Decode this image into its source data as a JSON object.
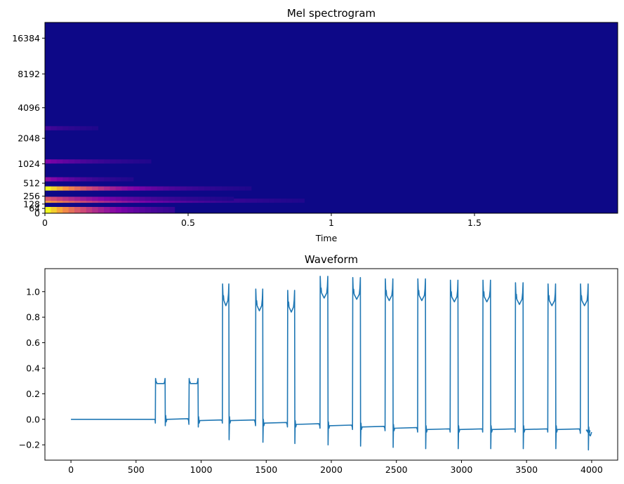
{
  "chart_data": [
    {
      "type": "heatmap",
      "title": "Mel spectrogram",
      "xlabel": "Time",
      "ylabel": "",
      "xlim": [
        0,
        2.0
      ],
      "x_ticks": [
        "0",
        "0.5",
        "1",
        "1.5"
      ],
      "x_tick_values": [
        0,
        0.5,
        1.0,
        1.5
      ],
      "y_scale": "mel",
      "y_ticks": [
        "0",
        "64",
        "128",
        "256",
        "512",
        "1024",
        "2048",
        "4096",
        "8192",
        "16384"
      ],
      "colormap": "plasma",
      "background_color": "#0d0887",
      "bands": [
        {
          "freq_hz": 0,
          "peak": 1.0,
          "decay_s": 0.18,
          "extent_s": 0.45
        },
        {
          "freq_hz": 180,
          "peak": 0.8,
          "decay_s": 0.3,
          "extent_s": 1.0
        },
        {
          "freq_hz": 210,
          "peak": 0.55,
          "decay_s": 0.25,
          "extent_s": 0.9
        },
        {
          "freq_hz": 400,
          "peak": 1.0,
          "decay_s": 0.22,
          "extent_s": 1.15
        },
        {
          "freq_hz": 600,
          "peak": 0.3,
          "decay_s": 0.15,
          "extent_s": 0.5
        },
        {
          "freq_hz": 1100,
          "peak": 0.25,
          "decay_s": 0.2,
          "extent_s": 0.6
        },
        {
          "freq_hz": 2600,
          "peak": 0.12,
          "decay_s": 0.15,
          "extent_s": 0.3
        }
      ]
    },
    {
      "type": "line",
      "title": "Waveform",
      "xlabel": "",
      "ylabel": "",
      "xlim": [
        -200,
        4200
      ],
      "ylim": [
        -0.32,
        1.18
      ],
      "x_ticks": [
        0,
        500,
        1000,
        1500,
        2000,
        2500,
        3000,
        3500,
        4000
      ],
      "y_ticks": [
        "−0.2",
        "0.0",
        "0.2",
        "0.4",
        "0.6",
        "0.8",
        "1.0"
      ],
      "y_tick_values": [
        -0.2,
        0.0,
        0.2,
        0.4,
        0.6,
        0.8,
        1.0
      ],
      "line_color": "#1f77b4",
      "baseline": {
        "start": 0,
        "end": 640,
        "value": 0.0
      },
      "pulses": [
        {
          "start": 650,
          "end": 725,
          "high": 0.28,
          "low": 0.0
        },
        {
          "start": 908,
          "end": 978,
          "high": 0.28,
          "low": -0.01
        },
        {
          "start": 1165,
          "end": 1215,
          "high": 0.93,
          "low": -0.01
        },
        {
          "start": 1420,
          "end": 1475,
          "high": 0.89,
          "low": -0.03
        },
        {
          "start": 1665,
          "end": 1720,
          "high": 0.88,
          "low": -0.04
        },
        {
          "start": 1915,
          "end": 1975,
          "high": 0.99,
          "low": -0.05
        },
        {
          "start": 2165,
          "end": 2225,
          "high": 0.98,
          "low": -0.06
        },
        {
          "start": 2415,
          "end": 2475,
          "high": 0.97,
          "low": -0.07
        },
        {
          "start": 2665,
          "end": 2725,
          "high": 0.97,
          "low": -0.08
        },
        {
          "start": 2915,
          "end": 2975,
          "high": 0.96,
          "low": -0.08
        },
        {
          "start": 3165,
          "end": 3225,
          "high": 0.96,
          "low": -0.08
        },
        {
          "start": 3415,
          "end": 3475,
          "high": 0.94,
          "low": -0.08
        },
        {
          "start": 3665,
          "end": 3725,
          "high": 0.93,
          "low": -0.08
        },
        {
          "start": 3915,
          "end": 3975,
          "high": 0.93,
          "low": -0.09
        }
      ],
      "end_value": -0.1,
      "end_x": 4000
    }
  ]
}
